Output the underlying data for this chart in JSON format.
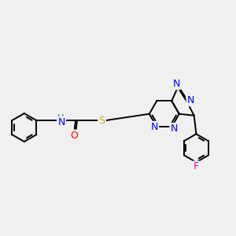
{
  "background_color": "#f0f0f0",
  "atom_colors": {
    "N": "#0000ff",
    "O": "#ff0000",
    "S": "#ccaa00",
    "F": "#ff00bb",
    "H": "#008888",
    "C": "#000000"
  },
  "font_size": 8.5,
  "bond_lw": 1.4
}
